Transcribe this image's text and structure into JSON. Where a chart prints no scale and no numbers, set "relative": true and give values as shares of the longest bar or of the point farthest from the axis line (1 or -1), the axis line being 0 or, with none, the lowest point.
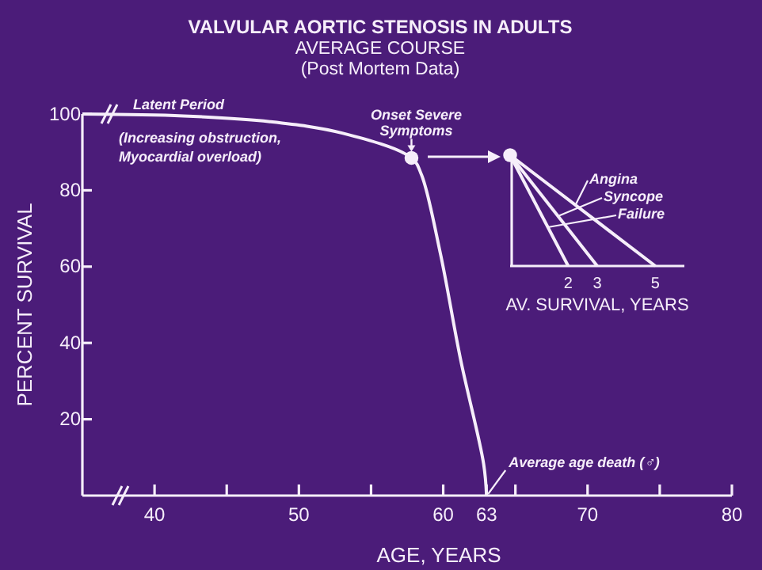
{
  "chart_data": [
    {
      "type": "line",
      "title": "VALVULAR AORTIC STENOSIS IN ADULTS",
      "subtitle": "AVERAGE COURSE\n(Post Mortem Data)",
      "xlabel": "AGE, YEARS",
      "ylabel": "PERCENT SURVIVAL",
      "xlim": [
        35,
        80
      ],
      "ylim": [
        0,
        100
      ],
      "xticks": [
        40,
        {
          "value": 45,
          "label": null
        },
        50,
        {
          "value": 55,
          "label": null
        },
        60,
        63,
        {
          "value": 65,
          "label": null
        },
        70,
        {
          "value": 75,
          "label": null
        },
        80
      ],
      "yticks": [
        20,
        40,
        60,
        80,
        100
      ],
      "grid": false,
      "series": [
        {
          "color": "#f6eefa",
          "x": [
            35,
            42,
            48,
            53,
            57.8,
            58.5,
            59.8,
            61.2,
            62.8,
            63
          ],
          "values": [
            100,
            99.5,
            98,
            95,
            88.5,
            84,
            63.5,
            35.7,
            8.3,
            0
          ]
        },
        {
          "type": "scatter",
          "marker": "circle",
          "color": "#f6eefa",
          "x": [
            57.8
          ],
          "values": [
            88.5
          ]
        }
      ],
      "annotations": [
        "Latent Period",
        "(Increasing obstruction,\nMyocardial overload)",
        {
          "text": "Onset Severe\nSymptoms",
          "x": 57.8,
          "y": 88.5
        },
        {
          "text": "Average age death (♂)",
          "x": 63,
          "y": 0
        }
      ]
    },
    {
      "type": "line",
      "relative": true,
      "xlabel": "AV. SURVIVAL, YEARS",
      "xlim": [
        0,
        6
      ],
      "xticks": [
        2,
        3,
        5
      ],
      "legend": "top right",
      "series": [
        {
          "name": "Angina",
          "color": "#f6eefa",
          "x": [
            0,
            5
          ],
          "values": [
            1,
            0
          ]
        },
        {
          "name": "Syncope",
          "color": "#f6eefa",
          "x": [
            0,
            3
          ],
          "values": [
            1,
            0
          ]
        },
        {
          "name": "Failure",
          "color": "#f6eefa",
          "x": [
            0,
            2
          ],
          "values": [
            1,
            0
          ]
        },
        {
          "type": "scatter",
          "marker": "circle",
          "color": "#f6eefa",
          "x": [
            0
          ],
          "values": [
            1
          ]
        }
      ]
    }
  ]
}
